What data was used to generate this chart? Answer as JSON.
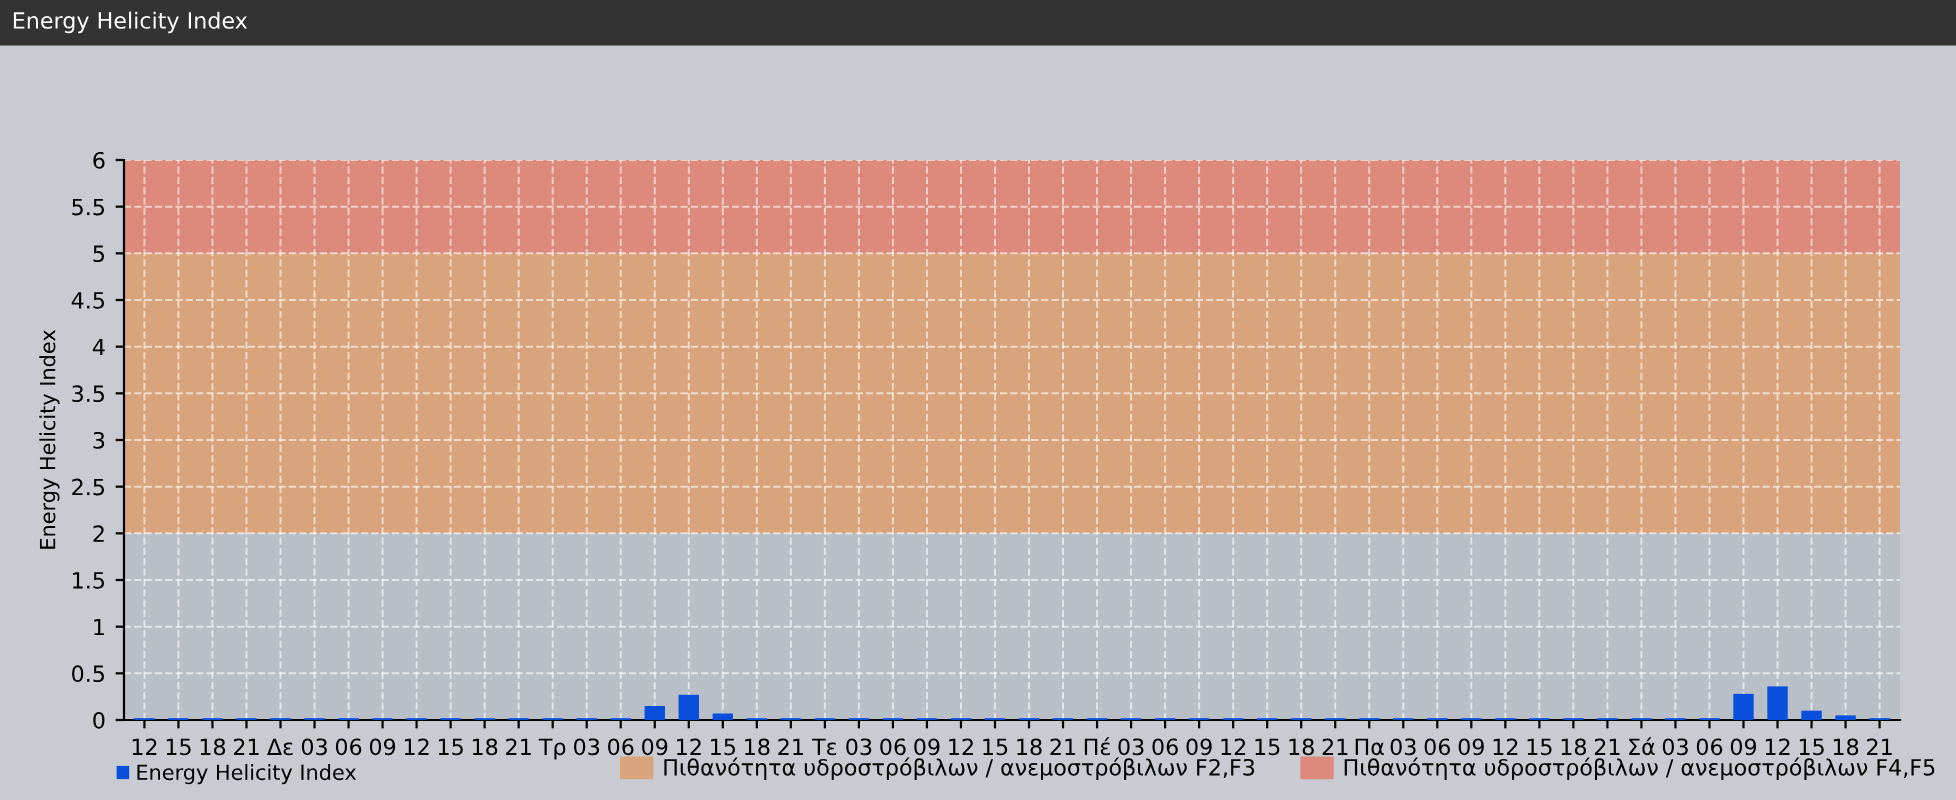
{
  "chart_data": {
    "type": "bar",
    "title": "Energy Helicity Index",
    "ylabel": "Energy Helicity Index",
    "categories": [
      "12",
      "15",
      "18",
      "21",
      "Δε",
      "03",
      "06",
      "09",
      "12",
      "15",
      "18",
      "21",
      "Τρ",
      "03",
      "06",
      "09",
      "12",
      "15",
      "18",
      "21",
      "Τε",
      "03",
      "06",
      "09",
      "12",
      "15",
      "18",
      "21",
      "Πέ",
      "03",
      "06",
      "09",
      "12",
      "15",
      "18",
      "21",
      "Πα",
      "03",
      "06",
      "09",
      "12",
      "15",
      "18",
      "21",
      "Σά",
      "03",
      "06",
      "09",
      "12",
      "15",
      "18",
      "21"
    ],
    "series": [
      {
        "name": "Energy Helicity Index",
        "color": "#0a4fdc",
        "values": [
          0.02,
          0.02,
          0.02,
          0.02,
          0.02,
          0.02,
          0.02,
          0.02,
          0.02,
          0.02,
          0.02,
          0.02,
          0.02,
          0.02,
          0.02,
          0.15,
          0.27,
          0.07,
          0.02,
          0.02,
          0.02,
          0.02,
          0.02,
          0.02,
          0.02,
          0.02,
          0.02,
          0.02,
          0.02,
          0.02,
          0.02,
          0.02,
          0.02,
          0.02,
          0.02,
          0.02,
          0.02,
          0.02,
          0.02,
          0.02,
          0.02,
          0.02,
          0.02,
          0.02,
          0.02,
          0.02,
          0.02,
          0.28,
          0.36,
          0.1,
          0.05,
          0.02
        ]
      }
    ],
    "ylim": [
      0,
      6
    ],
    "yticks": [
      0,
      0.5,
      1,
      1.5,
      2,
      2.5,
      3,
      3.5,
      4,
      4.5,
      5,
      5.5,
      6
    ],
    "bands": [
      {
        "axis": "y",
        "from": 2,
        "to": 5,
        "label": "Πιθανότητα υδροστρόβιλων / ανεμοστρόβιλων F2,F3",
        "color": "#d9a47c"
      },
      {
        "axis": "y",
        "from": 5,
        "to": 6,
        "label": "Πιθανότητα υδροστρόβιλων / ανεμοστρόβιλων F4,F5",
        "color": "#dd897c"
      }
    ],
    "grid": true,
    "legend": "bottom left"
  }
}
